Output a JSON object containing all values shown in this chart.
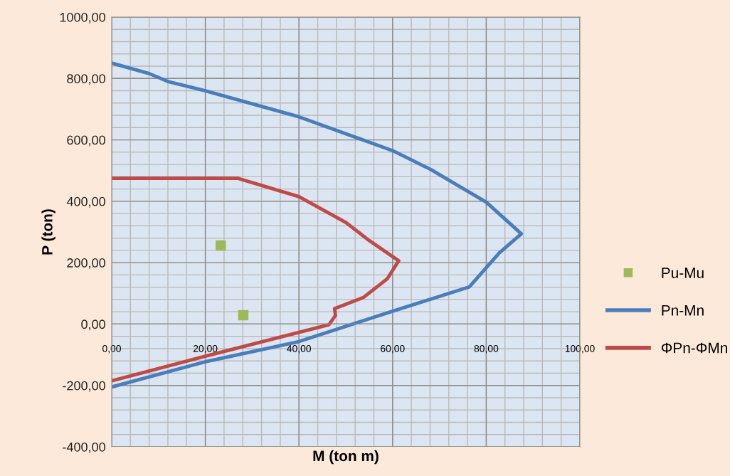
{
  "chart_data": {
    "type": "line",
    "xlabel": "M (ton m)",
    "ylabel": "P (ton)",
    "xlim": [
      0,
      100
    ],
    "ylim": [
      -400,
      1000
    ],
    "xticks": [
      {
        "value": 0,
        "label": "0,00"
      },
      {
        "value": 20,
        "label": "20,00"
      },
      {
        "value": 40,
        "label": "40,00"
      },
      {
        "value": 60,
        "label": "60,00"
      },
      {
        "value": 80,
        "label": "80,00"
      },
      {
        "value": 100,
        "label": "100,00"
      }
    ],
    "yticks": [
      {
        "value": -400,
        "label": "-400,00"
      },
      {
        "value": -200,
        "label": "-200,00"
      },
      {
        "value": 0,
        "label": "0,00"
      },
      {
        "value": 200,
        "label": "200,00"
      },
      {
        "value": 400,
        "label": "400,00"
      },
      {
        "value": 600,
        "label": "600,00"
      },
      {
        "value": 800,
        "label": "800,00"
      },
      {
        "value": 1000,
        "label": "1000,00"
      }
    ],
    "grid": true,
    "legend": "right",
    "series": [
      {
        "name": "Pu-Mu",
        "type": "scatter",
        "marker": "square",
        "color": "#9bbb59",
        "x": [
          23.3,
          28.1
        ],
        "values": [
          256,
          29
        ]
      },
      {
        "name": "Pn-Mn",
        "marker": "none",
        "color": "#4a7ebb",
        "x": [
          0,
          8,
          12,
          20,
          40,
          60,
          68.2,
          80,
          87.5,
          82.8,
          76.4,
          60,
          40,
          20,
          0
        ],
        "values": [
          850,
          816,
          790,
          760,
          675,
          565,
          503,
          397,
          294,
          232,
          121,
          42,
          -57,
          -123,
          -205
        ]
      },
      {
        "name": "ΦPn-ΦMn",
        "marker": "none",
        "color": "#be4b48",
        "x": [
          0,
          26.9,
          40,
          50,
          55,
          61.3,
          58.9,
          53.7,
          47.6,
          47.8,
          46.4,
          20,
          0
        ],
        "values": [
          475,
          475,
          415,
          331,
          272,
          206,
          148,
          86,
          50,
          28,
          -2,
          -105,
          -185
        ]
      }
    ]
  }
}
